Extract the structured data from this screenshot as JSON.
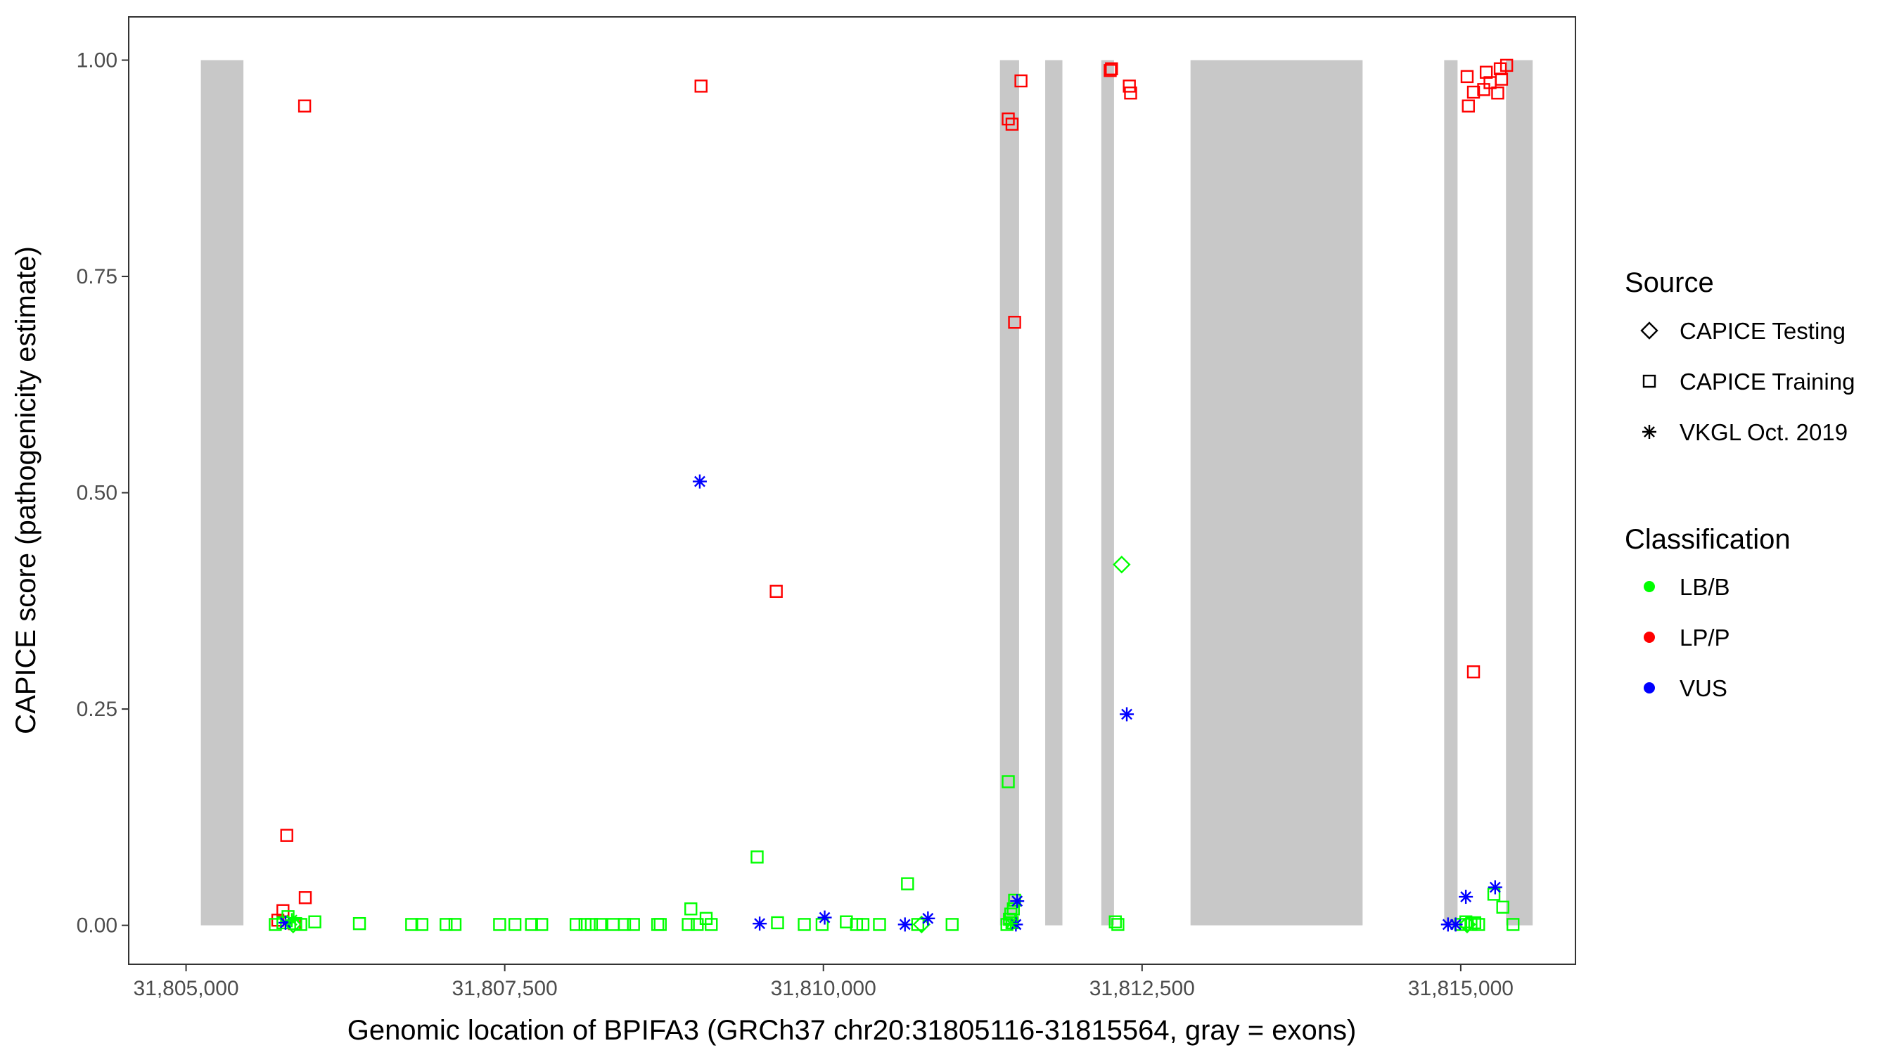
{
  "chart_data": {
    "type": "scatter",
    "title": "",
    "xlabel": "Genomic location of BPIFA3 (GRCh37 chr20:31805116-31815564, gray = exons)",
    "ylabel": "CAPICE score (pathogenicity estimate)",
    "xlim": [
      31804550,
      31815900
    ],
    "ylim": [
      -0.045,
      1.05
    ],
    "x_ticks": [
      31805000,
      31807500,
      31810000,
      31812500,
      31815000
    ],
    "x_tick_labels": [
      "31,805,000",
      "31,807,500",
      "31,810,000",
      "31,812,500",
      "31,815,000"
    ],
    "y_ticks": [
      0,
      0.25,
      0.5,
      0.75,
      1.0
    ],
    "y_tick_labels": [
      "0.00",
      "0.25",
      "0.50",
      "0.75",
      "1.00"
    ],
    "grid": false,
    "exons": [
      [
        31805116,
        31805450
      ],
      [
        31811385,
        31811535
      ],
      [
        31811740,
        31811875
      ],
      [
        31812180,
        31812280
      ],
      [
        31812880,
        31814230
      ],
      [
        31814870,
        31814975
      ],
      [
        31815355,
        31815564
      ]
    ],
    "legend": {
      "placement": "right",
      "source_title": "Source",
      "source_entries": [
        {
          "label": "CAPICE Testing",
          "shape": "diamond"
        },
        {
          "label": "CAPICE Training",
          "shape": "square"
        },
        {
          "label": "VKGL Oct. 2019",
          "shape": "asterisk"
        }
      ],
      "class_title": "Classification",
      "class_entries": [
        {
          "label": "LB/B",
          "color": "#00ff00"
        },
        {
          "label": "LP/P",
          "color": "#ff0000"
        },
        {
          "label": "VUS",
          "color": "#0000ff"
        }
      ]
    },
    "colors": {
      "LB/B": "#00ff00",
      "LP/P": "#ff0000",
      "VUS": "#0000ff"
    },
    "series": [
      {
        "name": "CAPICE Training",
        "classification": "LP/P",
        "shape": "square",
        "points": [
          [
            31805930,
            0.947
          ],
          [
            31805790,
            0.104
          ],
          [
            31805760,
            0.017
          ],
          [
            31805935,
            0.032
          ],
          [
            31805720,
            0.006
          ],
          [
            31805850,
            0.002
          ],
          [
            31809040,
            0.97
          ],
          [
            31809630,
            0.386
          ],
          [
            31811450,
            0.932
          ],
          [
            31811480,
            0.926
          ],
          [
            31811500,
            0.697
          ],
          [
            31811550,
            0.976
          ],
          [
            31812250,
            0.988
          ],
          [
            31812260,
            0.99
          ],
          [
            31812400,
            0.97
          ],
          [
            31812410,
            0.962
          ],
          [
            31815050,
            0.981
          ],
          [
            31815100,
            0.963
          ],
          [
            31815200,
            0.986
          ],
          [
            31815230,
            0.974
          ],
          [
            31815310,
            0.99
          ],
          [
            31815360,
            0.994
          ],
          [
            31815320,
            0.978
          ],
          [
            31815180,
            0.966
          ],
          [
            31815290,
            0.962
          ],
          [
            31815060,
            0.947
          ],
          [
            31815100,
            0.293
          ]
        ]
      },
      {
        "name": "CAPICE Training",
        "classification": "LB/B",
        "shape": "square",
        "points": [
          [
            31805700,
            0.001
          ],
          [
            31805760,
            0.003
          ],
          [
            31805800,
            0.01
          ],
          [
            31805860,
            0.002
          ],
          [
            31805900,
            0.001
          ],
          [
            31806010,
            0.004
          ],
          [
            31806360,
            0.002
          ],
          [
            31806770,
            0.001
          ],
          [
            31806850,
            0.001
          ],
          [
            31807040,
            0.001
          ],
          [
            31807110,
            0.001
          ],
          [
            31807460,
            0.001
          ],
          [
            31807580,
            0.001
          ],
          [
            31807710,
            0.001
          ],
          [
            31807790,
            0.001
          ],
          [
            31808060,
            0.001
          ],
          [
            31808130,
            0.001
          ],
          [
            31808180,
            0.001
          ],
          [
            31808250,
            0.001
          ],
          [
            31808350,
            0.001
          ],
          [
            31808440,
            0.001
          ],
          [
            31808510,
            0.001
          ],
          [
            31808700,
            0.001
          ],
          [
            31808720,
            0.001
          ],
          [
            31808960,
            0.019
          ],
          [
            31808940,
            0.001
          ],
          [
            31809010,
            0.001
          ],
          [
            31809080,
            0.008
          ],
          [
            31809120,
            0.001
          ],
          [
            31809480,
            0.079
          ],
          [
            31809640,
            0.003
          ],
          [
            31809850,
            0.001
          ],
          [
            31809990,
            0.001
          ],
          [
            31810180,
            0.004
          ],
          [
            31810260,
            0.001
          ],
          [
            31810310,
            0.001
          ],
          [
            31810440,
            0.001
          ],
          [
            31810660,
            0.048
          ],
          [
            31810740,
            0.001
          ],
          [
            31811010,
            0.001
          ],
          [
            31811450,
            0.166
          ],
          [
            31811440,
            0.001
          ],
          [
            31811460,
            0.007
          ],
          [
            31811470,
            0.013
          ],
          [
            31811480,
            0.003
          ],
          [
            31811490,
            0.019
          ],
          [
            31811500,
            0.029
          ],
          [
            31812290,
            0.004
          ],
          [
            31812310,
            0.001
          ],
          [
            31815000,
            0.001
          ],
          [
            31815040,
            0.004
          ],
          [
            31815080,
            0.001
          ],
          [
            31815110,
            0.003
          ],
          [
            31815140,
            0.001
          ],
          [
            31815260,
            0.036
          ],
          [
            31815330,
            0.021
          ],
          [
            31815410,
            0.001
          ]
        ]
      },
      {
        "name": "CAPICE Testing",
        "classification": "LB/B",
        "shape": "diamond",
        "points": [
          [
            31812340,
            0.417
          ],
          [
            31805840,
            0.001
          ],
          [
            31810770,
            0.001
          ],
          [
            31815050,
            0.001
          ]
        ]
      },
      {
        "name": "VKGL Oct. 2019",
        "classification": "VUS",
        "shape": "asterisk",
        "points": [
          [
            31809030,
            0.513
          ],
          [
            31809500,
            0.002
          ],
          [
            31810010,
            0.009
          ],
          [
            31810640,
            0.001
          ],
          [
            31810820,
            0.008
          ],
          [
            31811520,
            0.028
          ],
          [
            31811510,
            0.001
          ],
          [
            31812380,
            0.244
          ],
          [
            31805780,
            0.003
          ],
          [
            31814900,
            0.001
          ],
          [
            31814960,
            0.001
          ],
          [
            31815040,
            0.033
          ],
          [
            31815270,
            0.044
          ]
        ]
      },
      {
        "name": "VKGL Oct. 2019",
        "classification": "LB/B",
        "shape": "asterisk",
        "points": [
          [
            31805830,
            0.006
          ],
          [
            31811470,
            0.002
          ]
        ]
      }
    ]
  }
}
